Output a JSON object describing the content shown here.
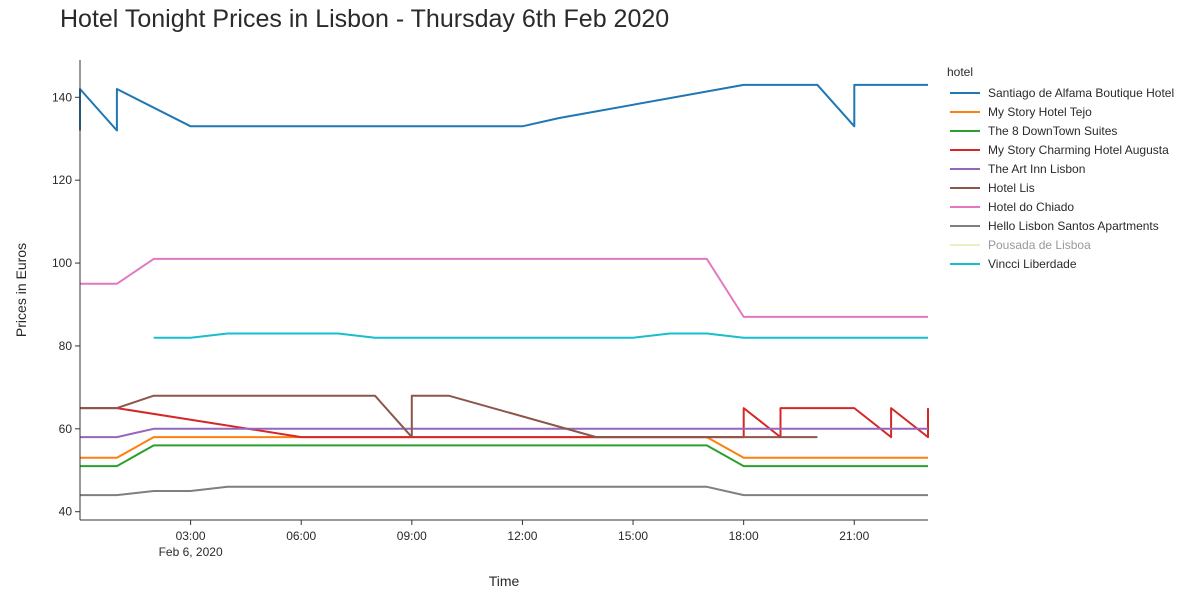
{
  "title": "Hotel Tonight Prices in Lisbon - Thursday 6th Feb 2020",
  "legend": {
    "title": "hotel"
  },
  "chart_data": {
    "type": "line",
    "title": "Hotel Tonight Prices in Lisbon - Thursday 6th Feb 2020",
    "xlabel": "Time",
    "ylabel": "Prices in Euros",
    "xlim": [
      "00:00",
      "23:00"
    ],
    "ylim": [
      38,
      149
    ],
    "x_ticks": [
      "03:00",
      "06:00",
      "09:00",
      "12:00",
      "15:00",
      "18:00",
      "21:00"
    ],
    "x_date_label": "Feb 6, 2020",
    "y_ticks": [
      40,
      60,
      80,
      100,
      120,
      140
    ],
    "legend_position": "right",
    "grid": false,
    "series": [
      {
        "name": "Santiago de Alfama Boutique Hotel",
        "color": "#1f77b4",
        "points": [
          [
            "00:00",
            132
          ],
          [
            "00:00",
            142
          ],
          [
            "01:00",
            132
          ],
          [
            "01:00",
            142
          ],
          [
            "03:00",
            133
          ],
          [
            "04:00",
            133
          ],
          [
            "12:00",
            133
          ],
          [
            "13:00",
            135
          ],
          [
            "18:00",
            143
          ],
          [
            "20:00",
            143
          ],
          [
            "21:00",
            133
          ],
          [
            "21:00",
            143
          ],
          [
            "23:00",
            143
          ]
        ]
      },
      {
        "name": "My Story Hotel Tejo",
        "color": "#ff7f0e",
        "points": [
          [
            "00:00",
            53
          ],
          [
            "01:00",
            53
          ],
          [
            "02:00",
            58
          ],
          [
            "17:00",
            58
          ],
          [
            "18:00",
            53
          ],
          [
            "23:00",
            53
          ]
        ]
      },
      {
        "name": "The 8 DownTown Suites",
        "color": "#2ca02c",
        "points": [
          [
            "00:00",
            51
          ],
          [
            "01:00",
            51
          ],
          [
            "02:00",
            56
          ],
          [
            "17:00",
            56
          ],
          [
            "18:00",
            51
          ],
          [
            "23:00",
            51
          ]
        ]
      },
      {
        "name": "My Story Charming Hotel Augusta",
        "color": "#d62728",
        "points": [
          [
            "00:00",
            65
          ],
          [
            "01:00",
            65
          ],
          [
            "06:00",
            58
          ],
          [
            "18:00",
            58
          ],
          [
            "18:00",
            65
          ],
          [
            "19:00",
            58
          ],
          [
            "19:00",
            65
          ],
          [
            "21:00",
            65
          ],
          [
            "22:00",
            58
          ],
          [
            "22:00",
            65
          ],
          [
            "23:00",
            58
          ],
          [
            "23:00",
            65
          ]
        ]
      },
      {
        "name": "The Art Inn Lisbon",
        "color": "#9467bd",
        "points": [
          [
            "00:00",
            58
          ],
          [
            "01:00",
            58
          ],
          [
            "02:00",
            60
          ],
          [
            "23:00",
            60
          ]
        ]
      },
      {
        "name": "Hotel Lis",
        "color": "#8c564b",
        "points": [
          [
            "00:00",
            65
          ],
          [
            "01:00",
            65
          ],
          [
            "02:00",
            68
          ],
          [
            "08:00",
            68
          ],
          [
            "09:00",
            58
          ],
          [
            "09:00",
            68
          ],
          [
            "10:00",
            68
          ],
          [
            "14:00",
            58
          ],
          [
            "20:00",
            58
          ]
        ]
      },
      {
        "name": "Hotel do Chiado",
        "color": "#e377c2",
        "points": [
          [
            "00:00",
            95
          ],
          [
            "01:00",
            95
          ],
          [
            "02:00",
            101
          ],
          [
            "17:00",
            101
          ],
          [
            "18:00",
            87
          ],
          [
            "23:00",
            87
          ]
        ]
      },
      {
        "name": "Hello Lisbon Santos Apartments",
        "color": "#7f7f7f",
        "points": [
          [
            "00:00",
            44
          ],
          [
            "01:00",
            44
          ],
          [
            "02:00",
            45
          ],
          [
            "03:00",
            45
          ],
          [
            "04:00",
            46
          ],
          [
            "17:00",
            46
          ],
          [
            "18:00",
            44
          ],
          [
            "23:00",
            44
          ]
        ]
      },
      {
        "name": "Pousada de Lisboa",
        "color": "#dbdb8d",
        "faded": true,
        "points": []
      },
      {
        "name": "Vincci Liberdade",
        "color": "#17becf",
        "points": [
          [
            "02:00",
            82
          ],
          [
            "03:00",
            82
          ],
          [
            "04:00",
            83
          ],
          [
            "07:00",
            83
          ],
          [
            "08:00",
            82
          ],
          [
            "15:00",
            82
          ],
          [
            "16:00",
            83
          ],
          [
            "17:00",
            83
          ],
          [
            "18:00",
            82
          ],
          [
            "23:00",
            82
          ]
        ]
      }
    ]
  }
}
